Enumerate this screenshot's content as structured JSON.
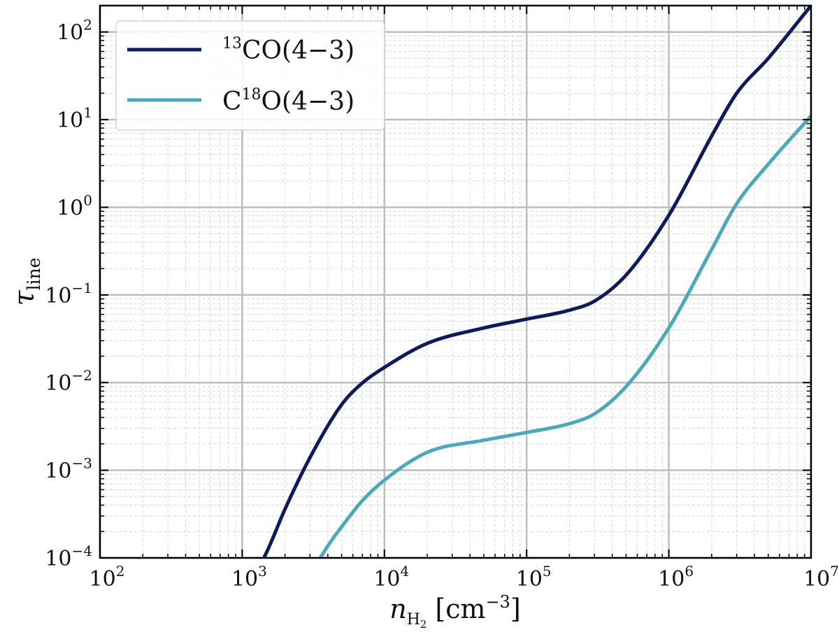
{
  "chart_data": {
    "type": "line",
    "x_scale": "log",
    "y_scale": "log",
    "xlim": [
      100,
      10000000
    ],
    "ylim": [
      0.0001,
      200
    ],
    "grid": true,
    "legend_position": "top-left",
    "xlabel": {
      "var": "n",
      "sub": "H",
      "subsub": "2",
      "unit": "[cm",
      "unit_exp": "−3",
      "unit_close": "]"
    },
    "ylabel": {
      "var": "τ",
      "sub": "line"
    },
    "x_ticks": [
      {
        "value": 100,
        "base": "10",
        "exp": "2"
      },
      {
        "value": 1000,
        "base": "10",
        "exp": "3"
      },
      {
        "value": 10000,
        "base": "10",
        "exp": "4"
      },
      {
        "value": 100000,
        "base": "10",
        "exp": "5"
      },
      {
        "value": 1000000,
        "base": "10",
        "exp": "6"
      },
      {
        "value": 10000000,
        "base": "10",
        "exp": "7"
      }
    ],
    "y_ticks": [
      {
        "value": 0.0001,
        "base": "10",
        "exp": "−4"
      },
      {
        "value": 0.001,
        "base": "10",
        "exp": "−3"
      },
      {
        "value": 0.01,
        "base": "10",
        "exp": "−2"
      },
      {
        "value": 0.1,
        "base": "10",
        "exp": "−1"
      },
      {
        "value": 1,
        "base": "10",
        "exp": "0"
      },
      {
        "value": 10,
        "base": "10",
        "exp": "1"
      },
      {
        "value": 100,
        "base": "10",
        "exp": "2"
      }
    ],
    "series": [
      {
        "name": "13CO(4−3)",
        "legend_parts": [
          "",
          "13",
          "CO(4−3)"
        ],
        "color": "#0d1b5e",
        "x": [
          1000,
          1500,
          2000,
          3000,
          5000,
          7000,
          10000,
          20000,
          50000,
          100000,
          200000,
          300000,
          500000,
          1000000,
          2000000,
          3000000,
          5000000,
          10000000
        ],
        "y": [
          3.4e-05,
          0.00012,
          0.00036,
          0.0014,
          0.0056,
          0.0099,
          0.0149,
          0.028,
          0.042,
          0.053,
          0.067,
          0.085,
          0.168,
          0.81,
          6.5,
          20,
          50,
          200
        ]
      },
      {
        "name": "C18O(4−3)",
        "legend_parts": [
          "C",
          "18",
          "O(4−3)"
        ],
        "color": "#4aa9bb",
        "x": [
          3000,
          4000,
          5000,
          7000,
          10000,
          20000,
          50000,
          100000,
          200000,
          300000,
          500000,
          1000000,
          2000000,
          3000000,
          5000000,
          10000000
        ],
        "y": [
          6.4e-05,
          0.000137,
          0.000226,
          0.00045,
          0.00077,
          0.0016,
          0.0022,
          0.0027,
          0.0034,
          0.0044,
          0.009,
          0.042,
          0.33,
          1.1,
          3.1,
          11
        ]
      }
    ]
  }
}
